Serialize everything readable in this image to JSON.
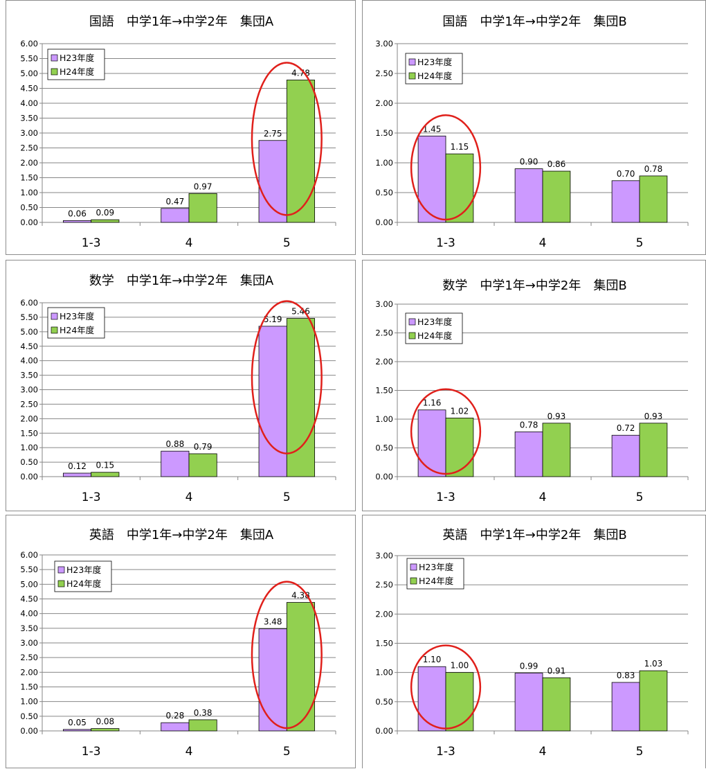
{
  "colors": {
    "h23": "#cc99ff",
    "h24": "#92d050",
    "circle": "#e0201b",
    "grid": "#868686"
  },
  "chart_data": [
    {
      "type": "bar",
      "title": "国語　中学1年→中学2年　集団A",
      "categories": [
        "1-3",
        "4",
        "5"
      ],
      "series": [
        {
          "name": "H23年度",
          "values": [
            0.06,
            0.47,
            2.75
          ]
        },
        {
          "name": "H24年度",
          "values": [
            0.09,
            0.97,
            4.78
          ]
        }
      ],
      "ylim": [
        0,
        6
      ],
      "ystep": 0.5,
      "grid": true,
      "legend": "top-left",
      "highlight_category": "5"
    },
    {
      "type": "bar",
      "title": "国語　中学1年→中学2年　集団B",
      "categories": [
        "1-3",
        "4",
        "5"
      ],
      "series": [
        {
          "name": "H23年度",
          "values": [
            1.45,
            0.9,
            0.7
          ]
        },
        {
          "name": "H24年度",
          "values": [
            1.15,
            0.86,
            0.78
          ]
        }
      ],
      "ylim": [
        0,
        3
      ],
      "ystep": 0.5,
      "grid": true,
      "legend": "top-left",
      "highlight_category": "1-3"
    },
    {
      "type": "bar",
      "title": "数学　中学1年→中学2年　集団A",
      "categories": [
        "1-3",
        "4",
        "5"
      ],
      "series": [
        {
          "name": "H23年度",
          "values": [
            0.12,
            0.88,
            5.19
          ]
        },
        {
          "name": "H24年度",
          "values": [
            0.15,
            0.79,
            5.46
          ]
        }
      ],
      "ylim": [
        0,
        6
      ],
      "ystep": 0.5,
      "grid": true,
      "legend": "top-left",
      "highlight_category": "5"
    },
    {
      "type": "bar",
      "title": "数学　中学1年→中学2年　集団B",
      "categories": [
        "1-3",
        "4",
        "5"
      ],
      "series": [
        {
          "name": "H23年度",
          "values": [
            1.16,
            0.78,
            0.72
          ]
        },
        {
          "name": "H24年度",
          "values": [
            1.02,
            0.93,
            0.93
          ]
        }
      ],
      "ylim": [
        0,
        3
      ],
      "ystep": 0.5,
      "grid": true,
      "legend": "top-left",
      "highlight_category": "1-3"
    },
    {
      "type": "bar",
      "title": "英語　中学1年→中学2年　集団A",
      "categories": [
        "1-3",
        "4",
        "5"
      ],
      "series": [
        {
          "name": "H23年度",
          "values": [
            0.05,
            0.28,
            3.48
          ]
        },
        {
          "name": "H24年度",
          "values": [
            0.08,
            0.38,
            4.38
          ]
        }
      ],
      "ylim": [
        0,
        6
      ],
      "ystep": 0.5,
      "grid": true,
      "legend": "top-left",
      "highlight_category": "5"
    },
    {
      "type": "bar",
      "title": "英語　中学1年→中学2年　集団B",
      "categories": [
        "1-3",
        "4",
        "5"
      ],
      "series": [
        {
          "name": "H23年度",
          "values": [
            1.1,
            0.99,
            0.83
          ]
        },
        {
          "name": "H24年度",
          "values": [
            1.0,
            0.91,
            1.03
          ]
        }
      ],
      "ylim": [
        0,
        3
      ],
      "ystep": 0.5,
      "grid": true,
      "legend": "top-left",
      "highlight_category": "1-3"
    }
  ]
}
